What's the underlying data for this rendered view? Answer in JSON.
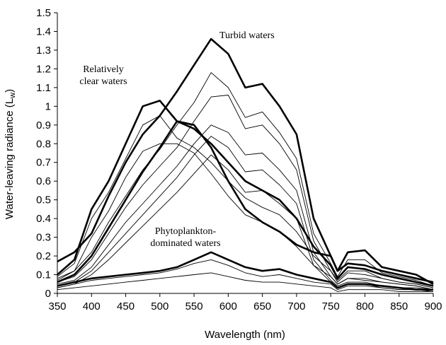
{
  "chart_data": {
    "type": "line",
    "xlabel": "Wavelength (nm)",
    "ylabel": [
      "Water-leaving radiance (L",
      "w",
      ")"
    ],
    "x": [
      350,
      375,
      400,
      425,
      450,
      475,
      500,
      525,
      550,
      575,
      600,
      625,
      650,
      675,
      700,
      725,
      750,
      760,
      775,
      800,
      825,
      850,
      875,
      900
    ],
    "xlim": [
      350,
      900
    ],
    "xticks": [
      350,
      400,
      450,
      500,
      550,
      600,
      650,
      700,
      750,
      800,
      850,
      900
    ],
    "ylim": [
      0,
      1.5
    ],
    "yticks": [
      0,
      0.1,
      0.2,
      0.3,
      0.4,
      0.5,
      0.6,
      0.7,
      0.8,
      0.9,
      1,
      1.1,
      1.2,
      1.3,
      1.4,
      1.5
    ],
    "grid": false,
    "annotations": [
      [
        "Turbid waters"
      ],
      [
        "Relatively",
        "clear waters"
      ],
      [
        "Phytoplankton-",
        "dominated waters"
      ]
    ],
    "series": [
      {
        "color": "#000000",
        "bold": true,
        "values": [
          0.17,
          0.22,
          0.32,
          0.52,
          0.7,
          0.85,
          0.95,
          1.08,
          1.22,
          1.36,
          1.28,
          1.1,
          1.12,
          1.0,
          0.85,
          0.4,
          0.2,
          0.12,
          0.22,
          0.23,
          0.14,
          0.12,
          0.1,
          0.05
        ]
      },
      {
        "color": "#000000",
        "bold": true,
        "values": [
          0.1,
          0.18,
          0.45,
          0.6,
          0.8,
          1.0,
          1.03,
          0.92,
          0.88,
          0.8,
          0.7,
          0.6,
          0.55,
          0.5,
          0.4,
          0.25,
          0.15,
          0.08,
          0.14,
          0.13,
          0.1,
          0.08,
          0.06,
          0.04
        ]
      },
      {
        "color": "#000000",
        "bold": false,
        "values": [
          0.09,
          0.16,
          0.4,
          0.54,
          0.72,
          0.9,
          0.95,
          0.83,
          0.78,
          0.7,
          0.6,
          0.51,
          0.46,
          0.42,
          0.33,
          0.2,
          0.12,
          0.06,
          0.11,
          0.1,
          0.08,
          0.06,
          0.05,
          0.03
        ]
      },
      {
        "color": "#000000",
        "bold": false,
        "values": [
          0.07,
          0.12,
          0.3,
          0.44,
          0.62,
          0.76,
          0.8,
          0.8,
          0.75,
          0.64,
          0.52,
          0.42,
          0.38,
          0.33,
          0.25,
          0.15,
          0.09,
          0.05,
          0.08,
          0.07,
          0.06,
          0.05,
          0.04,
          0.02
        ]
      },
      {
        "color": "#000000",
        "bold": true,
        "values": [
          0.06,
          0.1,
          0.2,
          0.35,
          0.5,
          0.65,
          0.78,
          0.92,
          0.9,
          0.78,
          0.6,
          0.45,
          0.38,
          0.33,
          0.26,
          0.22,
          0.2,
          0.12,
          0.16,
          0.15,
          0.12,
          0.1,
          0.08,
          0.06
        ]
      },
      {
        "color": "#000000",
        "bold": false,
        "values": [
          0.08,
          0.12,
          0.22,
          0.38,
          0.52,
          0.66,
          0.77,
          0.9,
          1.02,
          1.18,
          1.1,
          0.94,
          0.97,
          0.86,
          0.72,
          0.32,
          0.16,
          0.09,
          0.18,
          0.18,
          0.11,
          0.09,
          0.07,
          0.04
        ]
      },
      {
        "color": "#000000",
        "bold": false,
        "values": [
          0.06,
          0.09,
          0.18,
          0.32,
          0.46,
          0.58,
          0.68,
          0.78,
          0.92,
          1.05,
          1.06,
          0.88,
          0.9,
          0.8,
          0.66,
          0.28,
          0.12,
          0.07,
          0.12,
          0.12,
          0.08,
          0.06,
          0.05,
          0.03
        ]
      },
      {
        "color": "#000000",
        "bold": false,
        "values": [
          0.05,
          0.07,
          0.14,
          0.26,
          0.38,
          0.48,
          0.58,
          0.68,
          0.8,
          0.9,
          0.86,
          0.74,
          0.75,
          0.66,
          0.55,
          0.22,
          0.09,
          0.05,
          0.08,
          0.08,
          0.06,
          0.05,
          0.04,
          0.02
        ]
      },
      {
        "color": "#000000",
        "bold": false,
        "values": [
          0.04,
          0.06,
          0.12,
          0.22,
          0.32,
          0.42,
          0.52,
          0.62,
          0.74,
          0.84,
          0.78,
          0.65,
          0.66,
          0.58,
          0.48,
          0.18,
          0.07,
          0.04,
          0.06,
          0.06,
          0.04,
          0.03,
          0.03,
          0.02
        ]
      },
      {
        "color": "#000000",
        "bold": false,
        "values": [
          0.03,
          0.05,
          0.1,
          0.18,
          0.27,
          0.36,
          0.45,
          0.54,
          0.64,
          0.74,
          0.66,
          0.54,
          0.55,
          0.48,
          0.4,
          0.15,
          0.06,
          0.03,
          0.05,
          0.05,
          0.03,
          0.02,
          0.02,
          0.01
        ]
      },
      {
        "color": "#000000",
        "bold": true,
        "values": [
          0.04,
          0.06,
          0.08,
          0.09,
          0.1,
          0.11,
          0.12,
          0.14,
          0.18,
          0.22,
          0.18,
          0.14,
          0.12,
          0.13,
          0.1,
          0.08,
          0.06,
          0.03,
          0.05,
          0.05,
          0.04,
          0.03,
          0.02,
          0.02
        ]
      },
      {
        "color": "#000000",
        "bold": false,
        "values": [
          0.03,
          0.05,
          0.07,
          0.08,
          0.09,
          0.1,
          0.11,
          0.13,
          0.16,
          0.18,
          0.15,
          0.11,
          0.09,
          0.1,
          0.08,
          0.06,
          0.05,
          0.02,
          0.04,
          0.04,
          0.03,
          0.02,
          0.02,
          0.01
        ]
      },
      {
        "color": "#000000",
        "bold": false,
        "values": [
          0.02,
          0.03,
          0.04,
          0.05,
          0.06,
          0.07,
          0.08,
          0.09,
          0.1,
          0.11,
          0.09,
          0.07,
          0.06,
          0.06,
          0.05,
          0.04,
          0.03,
          0.01,
          0.02,
          0.02,
          0.02,
          0.01,
          0.01,
          0.01
        ]
      }
    ]
  }
}
